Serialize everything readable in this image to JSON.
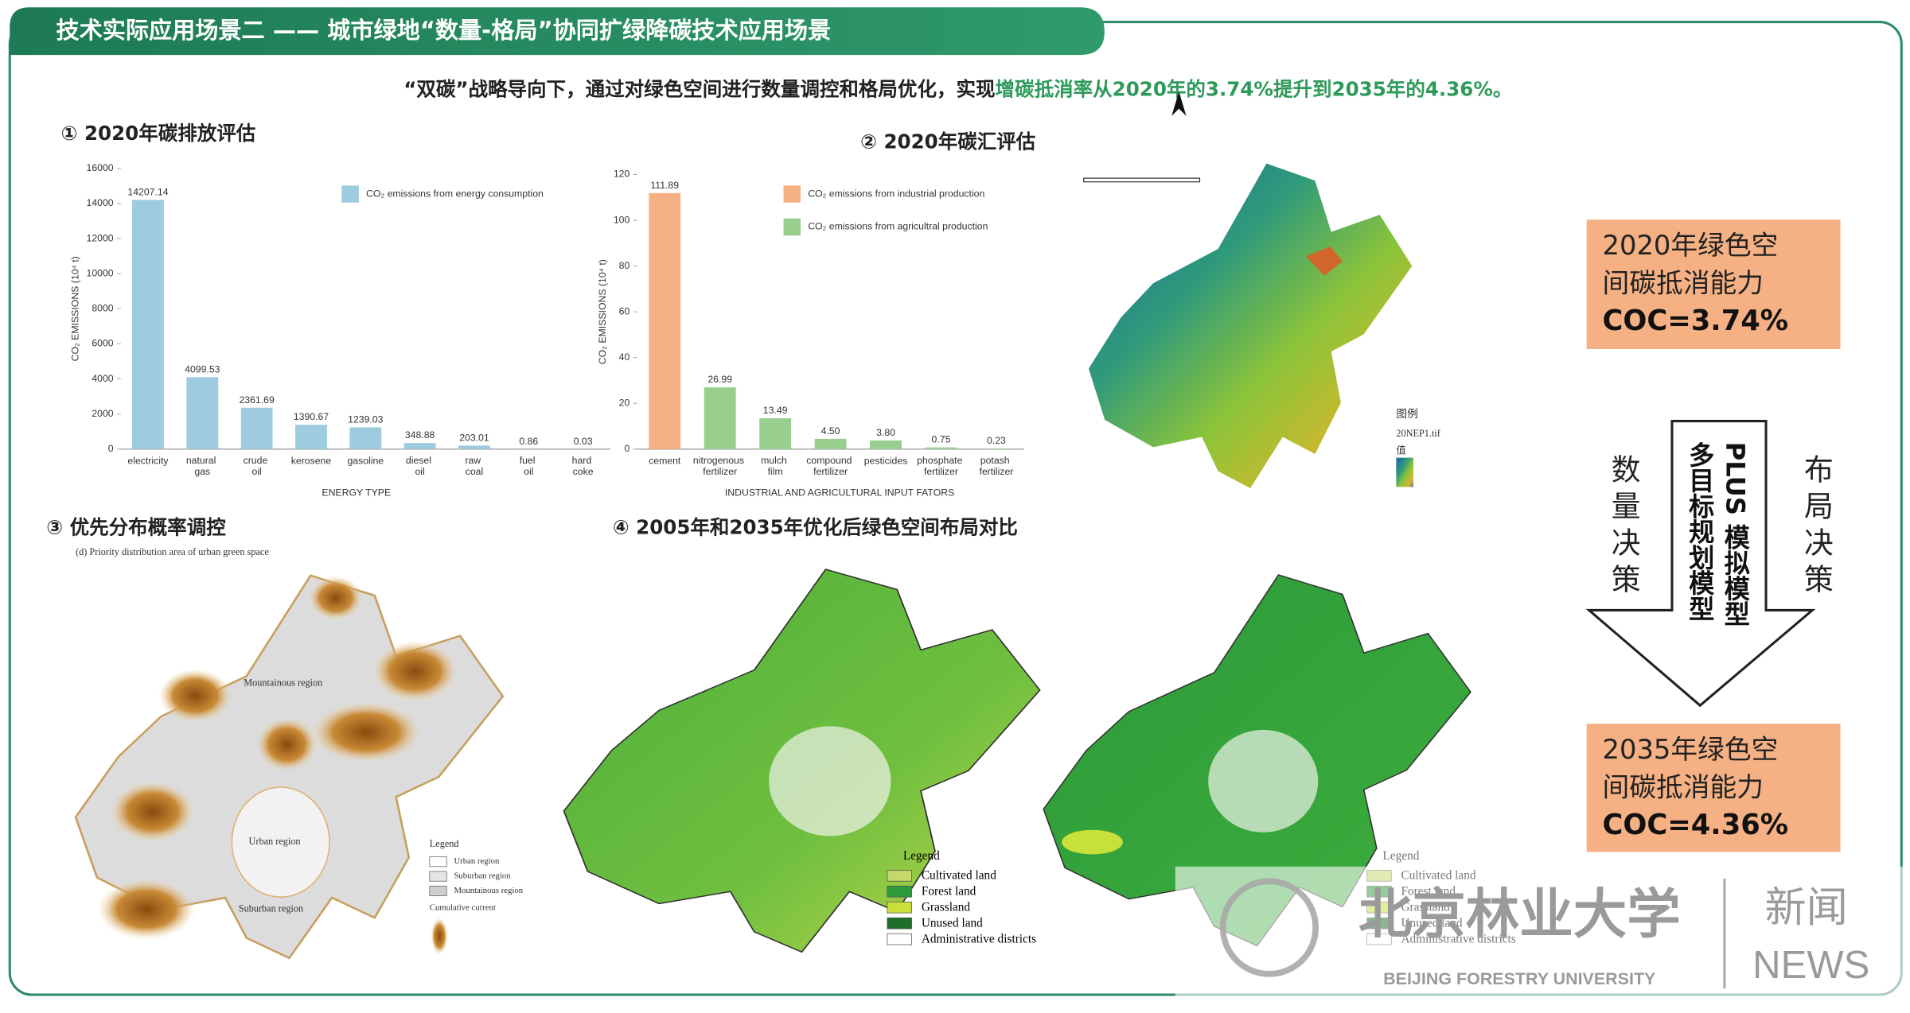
{
  "header": {
    "title": "技术实际应用场景二 —— 城市绿地“数量-格局”协同扩绿降碳技术应用场景",
    "subtitle": "“双碳”战略导向下，通过对绿色空间进行数量调控和格局优化，实现",
    "subtitle_highlight": "增碳抵消率从2020年的3.74%提升到2035年的4.36%。"
  },
  "sections": [
    "① 2020年碳排放评估",
    "② 2020年碳汇评估",
    "③ 优先分布概率调控",
    "④ 2005年和2035年优化后绿色空间布局对比"
  ],
  "chart_data": [
    {
      "type": "bar",
      "y_label": "CO₂ EMISSIONS (10⁴ t)",
      "x_label": "ENERGY TYPE",
      "categories": [
        "electricity",
        "natural gas",
        "crude oil",
        "kerosene",
        "gasoline",
        "diesel oil",
        "raw coal",
        "fuel oil",
        "hard coke"
      ],
      "series": [
        {
          "name": "CO₂ emissions from energy consumption",
          "color": "#9ecbe0",
          "values": [
            14207.14,
            4099.53,
            2361.69,
            1390.67,
            1239.03,
            348.88,
            203.01,
            0.86,
            0.03
          ]
        }
      ],
      "ylim": [
        0,
        16000
      ],
      "yticks": [
        0,
        2000,
        4000,
        6000,
        8000,
        10000,
        12000,
        14000,
        16000
      ],
      "legend": "upper right"
    },
    {
      "type": "bar",
      "y_label": "CO₂ EMISSIONS (10⁴ t)",
      "x_label": "INDUSTRIAL AND AGRICULTURAL INPUT FATORS",
      "categories": [
        "cement",
        "nitrogenous fertilizer",
        "mulch film",
        "compound fertilizer",
        "pesticides",
        "phosphate fertilizer",
        "potash fertilizer"
      ],
      "series": [
        {
          "name": "CO₂ emissions from industrial production",
          "color": "#f5b183",
          "values": [
            111.89,
            null,
            null,
            null,
            null,
            null,
            null
          ],
          "value_labels": [
            "111.89",
            null,
            null,
            null,
            null,
            null,
            null
          ]
        },
        {
          "name": "CO₂ emissions from agricultral production",
          "color": "#98cf8e",
          "values": [
            null,
            26.99,
            13.49,
            4.5,
            3.8,
            0.75,
            0.23
          ],
          "value_labels": [
            null,
            "26.99",
            "13.49",
            "4.50",
            "3.80",
            "0.75",
            "0.23"
          ]
        }
      ],
      "ylim": [
        0,
        120
      ],
      "yticks": [
        0,
        20,
        40,
        60,
        80,
        100,
        120
      ],
      "legend": "upper right"
    }
  ],
  "maps": {
    "carbon_sink": {
      "legend_title": "图例",
      "file": "20NEP1.tif",
      "value": "值"
    },
    "priority": {
      "title": "(d) Priority distribution area of urban green space",
      "regions": [
        "Mountainous region",
        "Urban region",
        "Suburban region"
      ],
      "legend_title": "Legend",
      "legend": [
        "Urban region",
        "Suburban region",
        "Mountainous region"
      ],
      "current": "Cumulative current"
    },
    "layout": {
      "legend_title": "Legend",
      "legend": [
        "Cultivated land",
        "Forest land",
        "Grassland",
        "Unused land",
        "Administrative districts"
      ]
    }
  },
  "boxes": [
    {
      "text": "2020年绿色空间碳抵消能力",
      "coc": "COC=3.74%"
    },
    {
      "text": "2035年绿色空间碳抵消能力",
      "coc": "COC=4.36%"
    }
  ],
  "arrow": {
    "models": [
      "PLUS 模拟模型",
      "多目标规划模型"
    ],
    "left": "数量决策",
    "right": "布局决策"
  },
  "watermark": {
    "name": "北京林业大学",
    "english": "BEIJING FORESTRY UNIVERSITY",
    "news_cn": "新闻",
    "news_en": "NEWS"
  }
}
